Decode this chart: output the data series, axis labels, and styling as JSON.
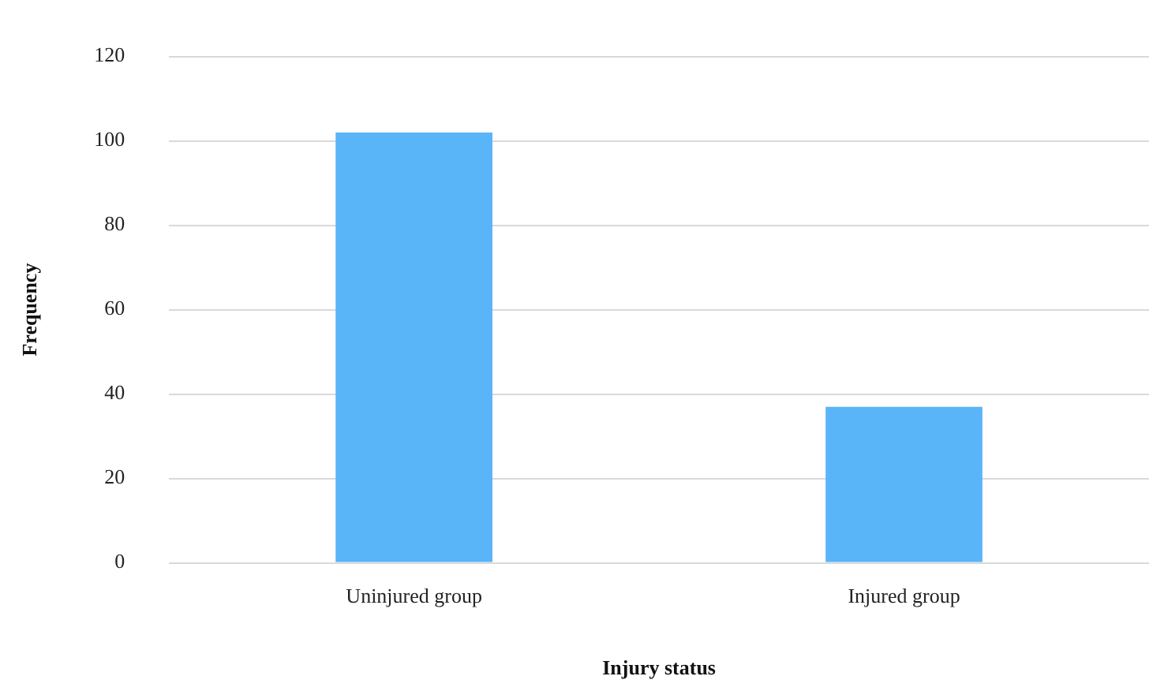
{
  "chart_data": {
    "type": "bar",
    "xlabel": "Injury status",
    "ylabel": "Frequency",
    "categories": [
      "Uninjured group",
      "Injured group"
    ],
    "values": [
      102,
      37
    ],
    "color": "#5ab4f8",
    "ylim": [
      0,
      120
    ],
    "yticks": [
      0,
      20,
      40,
      60,
      80,
      100,
      120
    ],
    "grid": "y",
    "legend": false
  }
}
